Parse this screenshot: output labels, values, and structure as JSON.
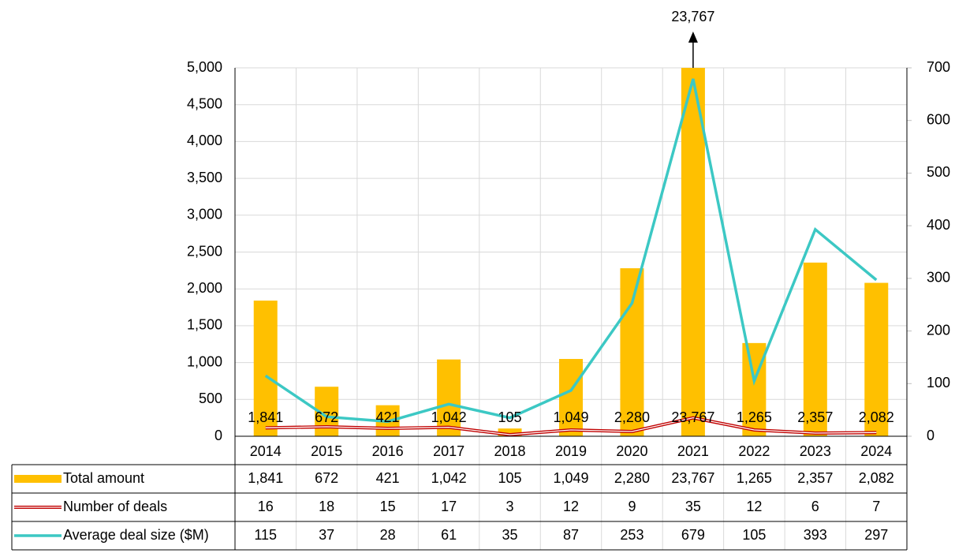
{
  "chart_data": {
    "type": "bar",
    "categories": [
      "2014",
      "2015",
      "2016",
      "2017",
      "2018",
      "2019",
      "2020",
      "2021",
      "2022",
      "2023",
      "2024"
    ],
    "series": [
      {
        "name": "Total amount",
        "color": "#FFC000",
        "values": [
          1841,
          672,
          421,
          1042,
          105,
          1049,
          2280,
          23767,
          1265,
          2357,
          2082
        ],
        "value_labels": [
          "1,841",
          "672",
          "421",
          "1,042",
          "105",
          "1,049",
          "2,280",
          "23,767",
          "1,265",
          "2,357",
          "2,082"
        ]
      },
      {
        "name": "Number of deals",
        "color": "#C00000",
        "type": "line",
        "axis": "y2",
        "values": [
          16,
          18,
          15,
          17,
          3,
          12,
          9,
          35,
          12,
          6,
          7
        ]
      },
      {
        "name": "Average deal size ($M)",
        "color": "#3CC8C4",
        "type": "line",
        "axis": "y2",
        "values": [
          115,
          37,
          28,
          61,
          35,
          87,
          253,
          679,
          105,
          393,
          297
        ]
      }
    ],
    "ylim": [
      0,
      5000
    ],
    "yticks": [
      0,
      500,
      {
        "value": 1000,
        "label": "1,000"
      },
      {
        "value": 1500,
        "label": "1,500"
      },
      {
        "value": 2000,
        "label": "2,000"
      },
      {
        "value": 2500,
        "label": "2,500"
      },
      {
        "value": 3000,
        "label": "3,000"
      },
      {
        "value": 3500,
        "label": "3,500"
      },
      {
        "value": 4000,
        "label": "4,000"
      },
      {
        "value": 4500,
        "label": "4,500"
      },
      {
        "value": 5000,
        "label": "5,000"
      }
    ],
    "y2lim": [
      0,
      700
    ],
    "y2ticks": [
      0,
      100,
      200,
      300,
      400,
      500,
      600,
      700
    ],
    "grid": true
  }
}
